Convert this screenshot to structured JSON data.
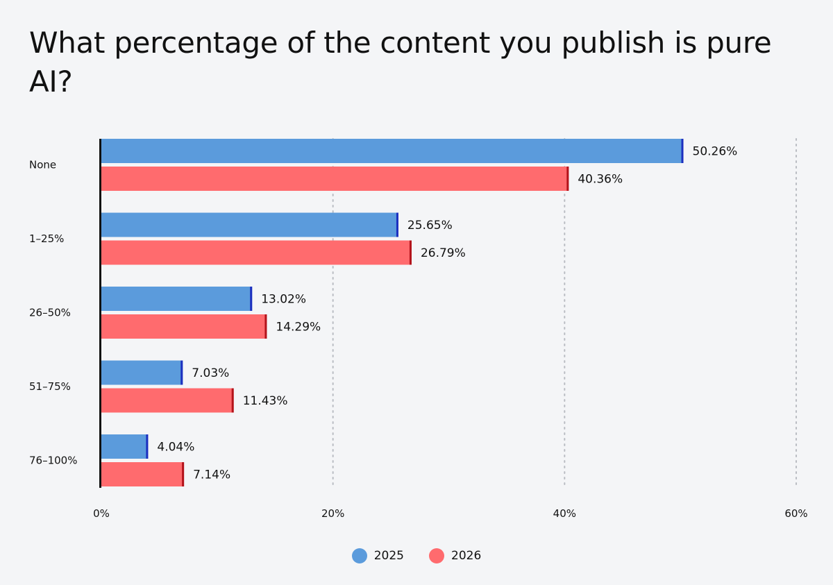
{
  "chart_data": {
    "type": "bar",
    "orientation": "horizontal",
    "title": "What percentage of the content you publish is pure AI?",
    "categories": [
      "None",
      "1–25%",
      "26–50%",
      "51–75%",
      "76–100%"
    ],
    "series": [
      {
        "name": "2025",
        "color": "#5b9bdc",
        "accent": "#1c2fbf",
        "values": [
          50.26,
          25.65,
          13.02,
          7.03,
          4.04
        ],
        "value_labels": [
          "50.26%",
          "25.65%",
          "13.02%",
          "7.03%",
          "4.04%"
        ]
      },
      {
        "name": "2026",
        "color": "#ff6b6e",
        "accent": "#b3131b",
        "values": [
          40.36,
          26.79,
          14.29,
          11.43,
          7.14
        ],
        "value_labels": [
          "40.36%",
          "26.79%",
          "14.29%",
          "11.43%",
          "7.14%"
        ]
      }
    ],
    "xlim": [
      0,
      60
    ],
    "xticks": [
      0,
      20,
      40,
      60
    ],
    "xtick_labels": [
      "0%",
      "20%",
      "40%",
      "60%"
    ],
    "grid": "vertical dotted",
    "legend": "bottom-center"
  }
}
